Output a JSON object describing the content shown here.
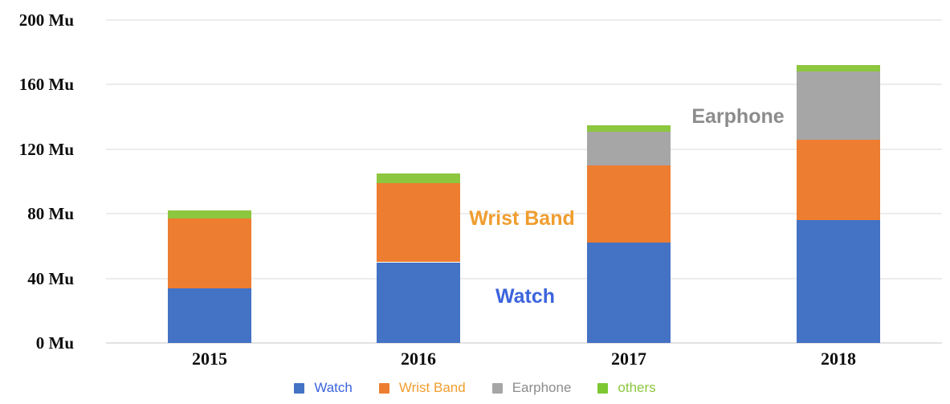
{
  "chart_data": {
    "type": "bar",
    "stacked": true,
    "title": "",
    "categories": [
      "2015",
      "2016",
      "2017",
      "2018"
    ],
    "series": [
      {
        "name": "Watch",
        "color": "#4472C4",
        "values": [
          34,
          50,
          62,
          76
        ]
      },
      {
        "name": "Wrist Band",
        "color": "#ED7D31",
        "values": [
          43,
          49,
          48,
          50
        ]
      },
      {
        "name": "Earphone",
        "color": "#A6A6A6",
        "values": [
          0,
          0,
          21,
          42
        ]
      },
      {
        "name": "others",
        "color": "#8DC63F",
        "values": [
          5,
          6,
          4,
          4
        ]
      }
    ],
    "totals": [
      82,
      105,
      135,
      172
    ],
    "unit": "Mu",
    "y_ticks": [
      0,
      40,
      80,
      120,
      160,
      200
    ],
    "y_tick_labels": [
      "0 Mu",
      "40 Mu",
      "80 Mu",
      "120 Mu",
      "160 Mu",
      "200 Mu"
    ],
    "ylim": [
      0,
      200
    ],
    "grid": true,
    "legend_position": "bottom"
  },
  "annotations": {
    "earphone": {
      "text": "Earphone",
      "color": "#8C8C8C"
    },
    "wristband": {
      "text": "Wrist Band",
      "color": "#F09D2E"
    },
    "watch": {
      "text": "Watch",
      "color": "#3C64DC"
    }
  },
  "legend": {
    "items": [
      {
        "label": "Watch",
        "swatch": "#4472C4",
        "text_color": "#3C64DC"
      },
      {
        "label": "Wrist Band",
        "swatch": "#ED7D31",
        "text_color": "#F09D2E"
      },
      {
        "label": "Earphone",
        "swatch": "#A6A6A6",
        "text_color": "#8C8C8C"
      },
      {
        "label": "others",
        "swatch": "#7DC832",
        "text_color": "#8DC63F"
      }
    ]
  }
}
